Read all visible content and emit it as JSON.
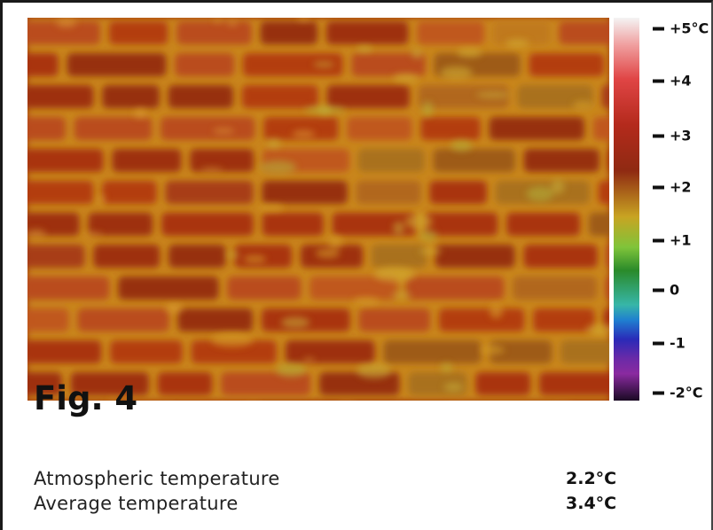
{
  "figure": {
    "title": "Fig. 4"
  },
  "scale": {
    "ticks": [
      "+5°C",
      "+4",
      "+3",
      "+2",
      "+1",
      "0",
      "-1",
      "-2°C"
    ],
    "range_c": [
      -2,
      5
    ],
    "colors": [
      "#f4f4f4",
      "#e04545",
      "#8f2a12",
      "#c8a422",
      "#2a8a2a",
      "#37b6a8",
      "#2a2ab8",
      "#8a2aa0",
      "#1a0a24"
    ]
  },
  "readings": [
    {
      "label": "Atmospheric temperature",
      "value": "2.2°C"
    },
    {
      "label": "Average temperature",
      "value": "3.4°C"
    }
  ]
}
